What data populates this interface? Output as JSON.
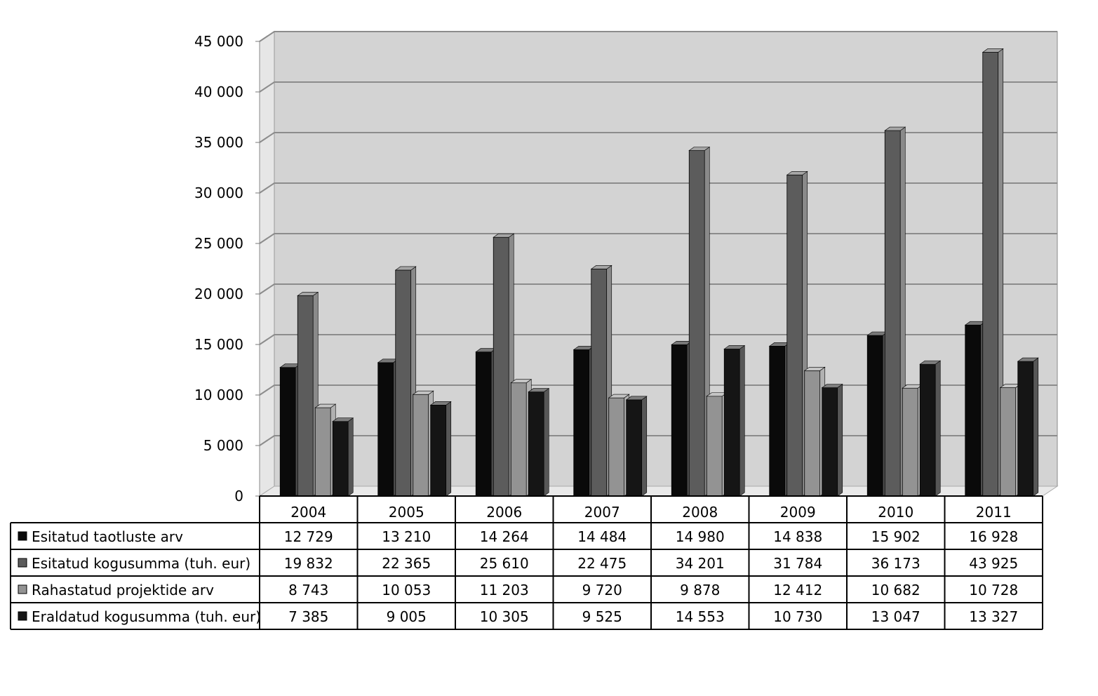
{
  "chart_data": {
    "type": "bar",
    "categories": [
      "2004",
      "2005",
      "2006",
      "2007",
      "2008",
      "2009",
      "2010",
      "2011"
    ],
    "ylim": [
      0,
      45000
    ],
    "y_ticks": [
      {
        "value": 0,
        "label": "0"
      },
      {
        "value": 5000,
        "label": "5 000"
      },
      {
        "value": 10000,
        "label": "10 000"
      },
      {
        "value": 15000,
        "label": "15 000"
      },
      {
        "value": 20000,
        "label": "20 000"
      },
      {
        "value": 25000,
        "label": "25 000"
      },
      {
        "value": 30000,
        "label": "30 000"
      },
      {
        "value": 35000,
        "label": "35 000"
      },
      {
        "value": 40000,
        "label": "40 000"
      },
      {
        "value": 45000,
        "label": "45 000"
      }
    ],
    "grid": true,
    "legend": "data-table-below",
    "series": [
      {
        "name": "Esitatud taotluste arv",
        "color": "#0a0a0a",
        "values": [
          12729,
          13210,
          14264,
          14484,
          14980,
          14838,
          15902,
          16928
        ],
        "labels": [
          "12 729",
          "13 210",
          "14 264",
          "14 484",
          "14 980",
          "14 838",
          "15 902",
          "16 928"
        ]
      },
      {
        "name": "Esitatud kogusumma (tuh. eur)",
        "color": "#5c5c5c",
        "values": [
          19832,
          22365,
          25610,
          22475,
          34201,
          31784,
          36173,
          43925
        ],
        "labels": [
          "19 832",
          "22 365",
          "25 610",
          "22 475",
          "34 201",
          "31 784",
          "36 173",
          "43 925"
        ]
      },
      {
        "name": "Rahastatud projektide arv",
        "color": "#939393",
        "values": [
          8743,
          10053,
          11203,
          9720,
          9878,
          12412,
          10682,
          10728
        ],
        "labels": [
          "8 743",
          "10 053",
          "11 203",
          "9 720",
          "9 878",
          "12 412",
          "10 682",
          "10 728"
        ]
      },
      {
        "name": "Eraldatud kogusumma (tuh. eur)",
        "color": "#151515",
        "values": [
          7385,
          9005,
          10305,
          9525,
          14553,
          10730,
          13047,
          13327
        ],
        "labels": [
          "7 385",
          "9 005",
          "10 305",
          "9 525",
          "14 553",
          "10 730",
          "13 047",
          "13 327"
        ]
      }
    ]
  }
}
